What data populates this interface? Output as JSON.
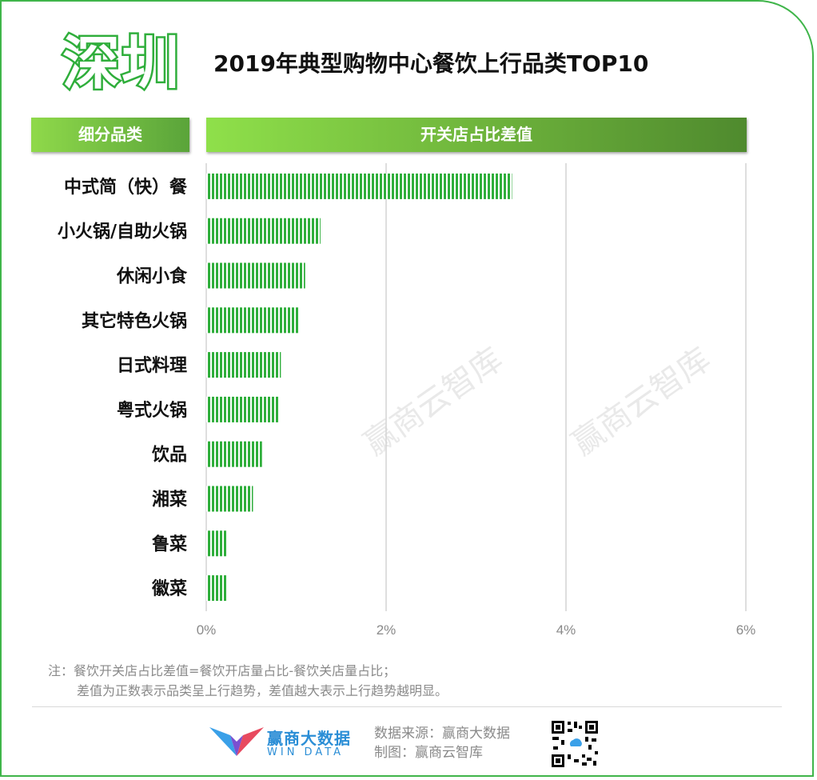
{
  "header": {
    "city": "深圳",
    "title": "2019年典型购物中心餐饮上行品类TOP10",
    "col_left": "细分品类",
    "col_right": "开关店占比差值"
  },
  "chart_data": {
    "type": "bar",
    "orientation": "horizontal",
    "categories": [
      "中式简（快）餐",
      "小火锅/自助火锅",
      "休闲小食",
      "其它特色火锅",
      "日式料理",
      "粤式火锅",
      "饮品",
      "湘菜",
      "鲁菜",
      "徽菜"
    ],
    "values": [
      3.4,
      1.27,
      1.1,
      1.03,
      0.83,
      0.81,
      0.62,
      0.52,
      0.24,
      0.24
    ],
    "xlim": [
      0,
      6
    ],
    "ticks": [
      0,
      2,
      4,
      6
    ],
    "tick_labels": [
      "0%",
      "2%",
      "4%",
      "6%"
    ],
    "grid": true,
    "bar_color": "#2fae3b"
  },
  "note": {
    "line1": "注：餐饮开关店占比差值=餐饮开店量占比-餐饮关店量占比；",
    "line2": "差值为正数表示品类呈上行趋势，差值越大表示上行趋势越明显。"
  },
  "footer": {
    "logo_cn": "赢商大数据",
    "logo_en": "WIN DATA",
    "source": "数据来源：赢商大数据",
    "made_by": "制图：赢商云智库"
  },
  "watermark": "赢商云智库",
  "icons": [
    "windata-logo-icon",
    "qr-code-icon"
  ]
}
